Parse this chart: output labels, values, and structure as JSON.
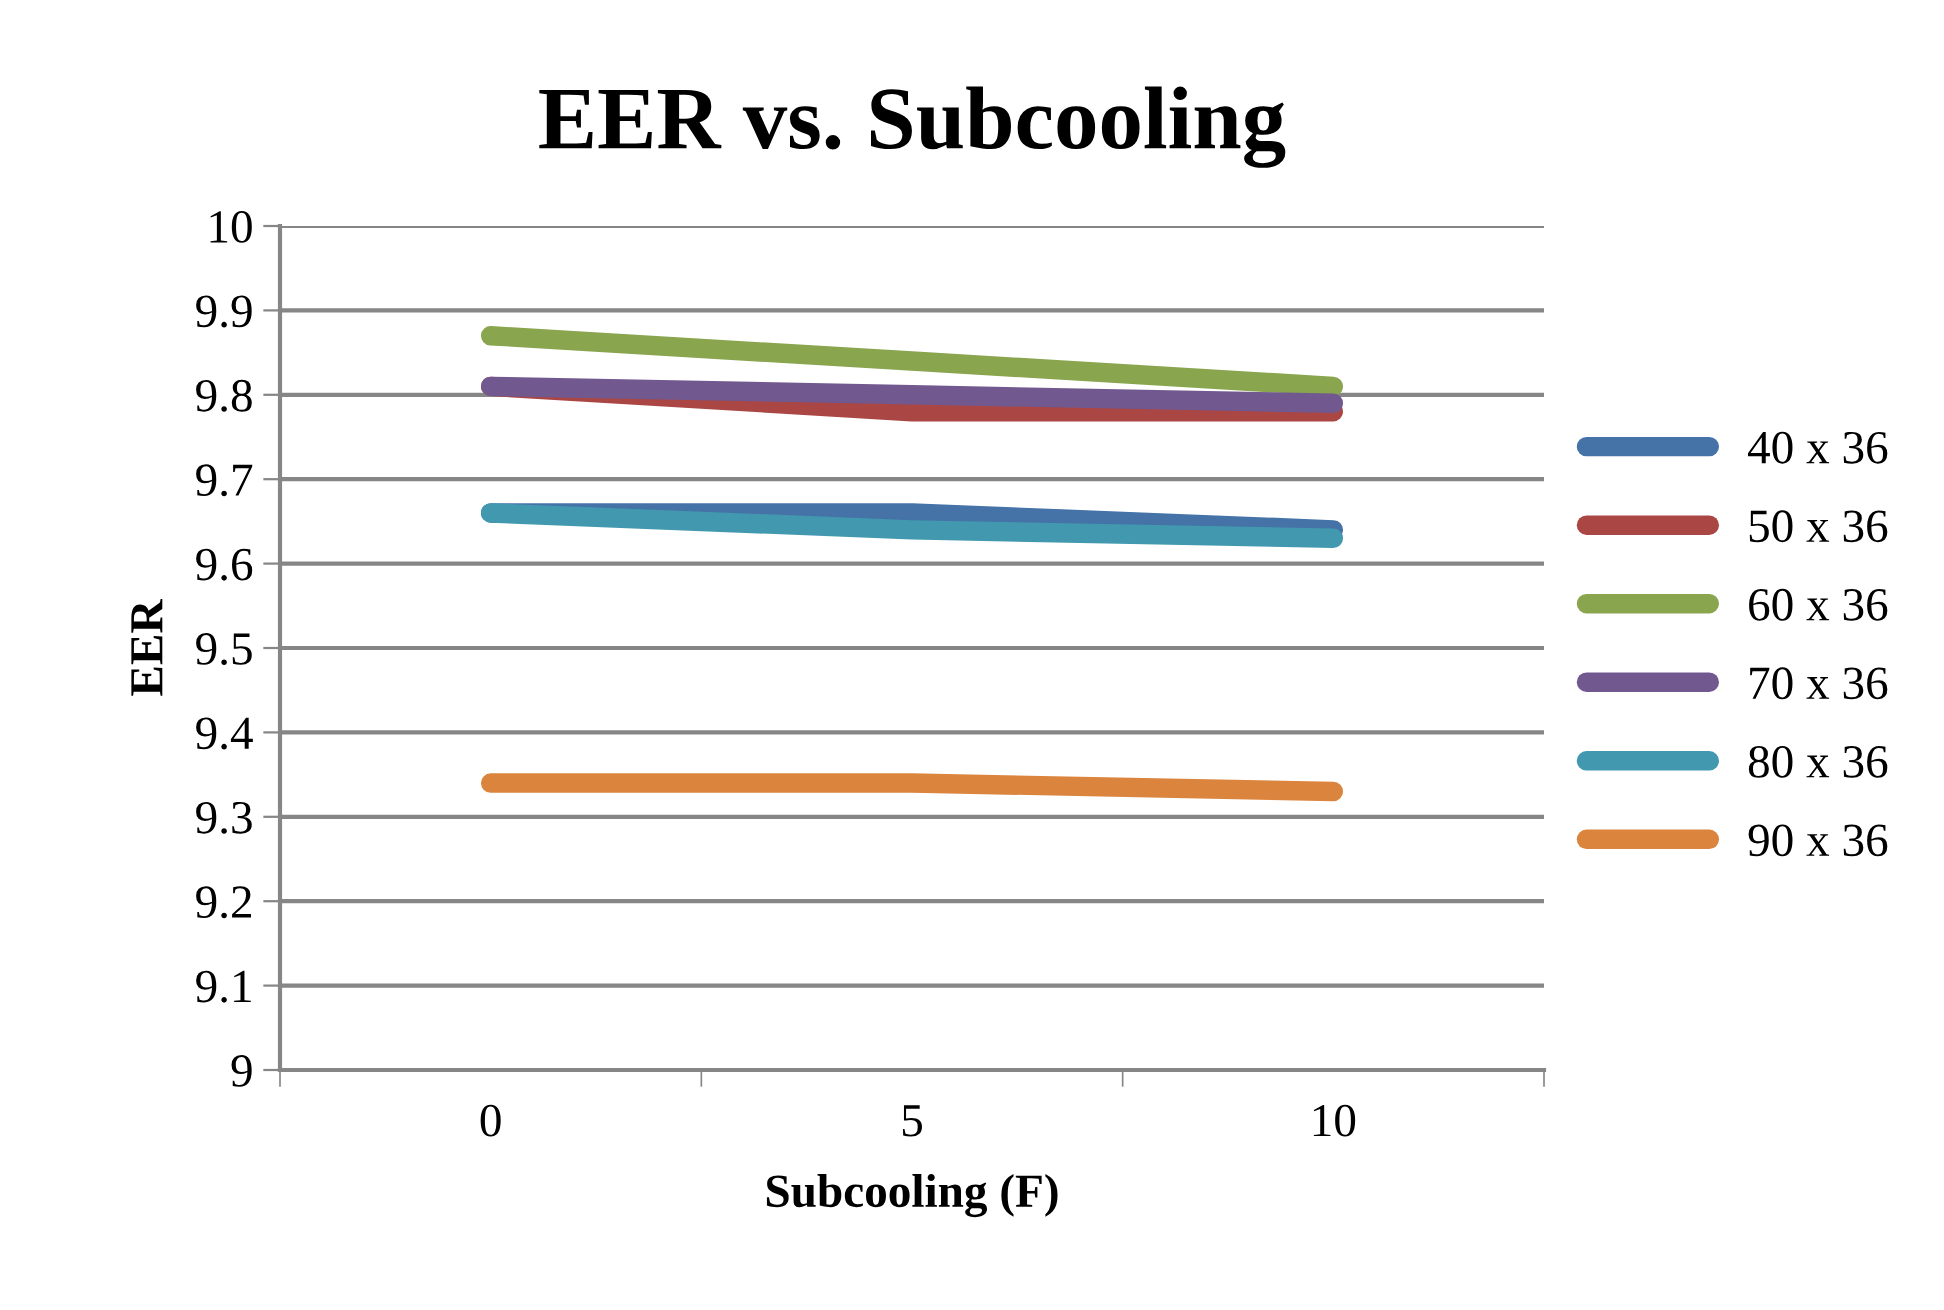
{
  "chart_data": {
    "type": "line",
    "title": "EER vs. Subcooling",
    "xlabel": "Subcooling (F)",
    "ylabel": "EER",
    "categories": [
      "0",
      "5",
      "10"
    ],
    "series": [
      {
        "name": "40 x 36",
        "color": "#4572a7",
        "values": [
          9.66,
          9.66,
          9.64
        ]
      },
      {
        "name": "50 x 36",
        "color": "#aa4643",
        "values": [
          9.81,
          9.78,
          9.78
        ]
      },
      {
        "name": "60 x 36",
        "color": "#89a54e",
        "values": [
          9.87,
          9.84,
          9.81
        ]
      },
      {
        "name": "70 x 36",
        "color": "#71588f",
        "values": [
          9.81,
          9.8,
          9.79
        ]
      },
      {
        "name": "80 x 36",
        "color": "#4198af",
        "values": [
          9.66,
          9.64,
          9.63
        ]
      },
      {
        "name": "90 x 36",
        "color": "#db843d",
        "values": [
          9.34,
          9.34,
          9.33
        ]
      }
    ],
    "ylim": [
      9,
      10
    ],
    "yticks": [
      9,
      9.1,
      9.2,
      9.3,
      9.4,
      9.5,
      9.6,
      9.7,
      9.8,
      9.9,
      10
    ],
    "grid": "y",
    "legend": "right",
    "marker": "none",
    "line_style": "solid"
  }
}
